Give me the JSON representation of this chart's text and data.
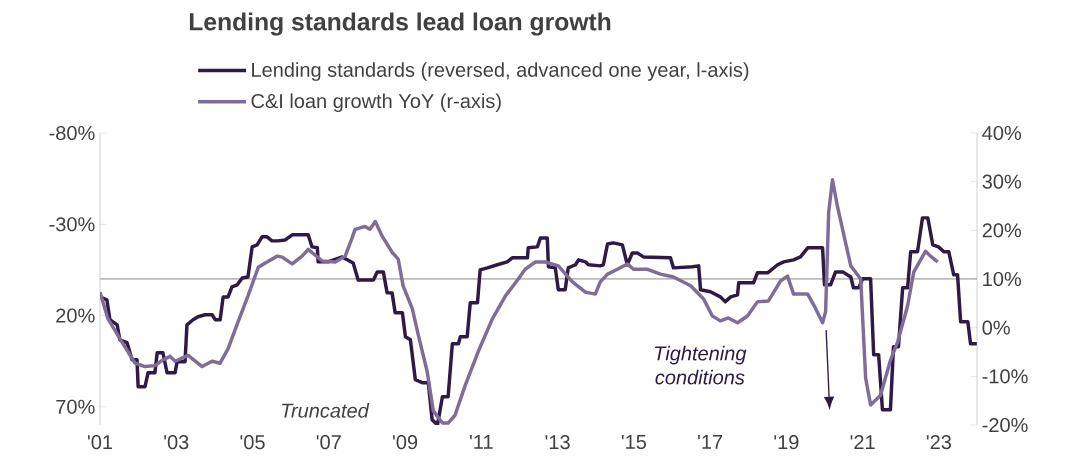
{
  "chart_data": {
    "type": "line",
    "title": "Lending standards lead loan growth",
    "legend": "top",
    "xlim": [
      2001,
      2024
    ],
    "xticks": [
      {
        "value": 2001,
        "label": "'01"
      },
      {
        "value": 2003,
        "label": "'03"
      },
      {
        "value": 2005,
        "label": "'05"
      },
      {
        "value": 2007,
        "label": "'07"
      },
      {
        "value": 2009,
        "label": "'09"
      },
      {
        "value": 2011,
        "label": "'11"
      },
      {
        "value": 2013,
        "label": "'13"
      },
      {
        "value": 2015,
        "label": "'15"
      },
      {
        "value": 2017,
        "label": "'17"
      },
      {
        "value": 2019,
        "label": "'19"
      },
      {
        "value": 2021,
        "label": "'21"
      },
      {
        "value": 2023,
        "label": "'23"
      }
    ],
    "ylim": [
      80,
      -80
    ],
    "yticks": [
      {
        "value": -80,
        "label": "-80%"
      },
      {
        "value": -30,
        "label": "-30%"
      },
      {
        "value": 20,
        "label": "20%"
      },
      {
        "value": 70,
        "label": "70%"
      }
    ],
    "y2lim": [
      -20,
      40
    ],
    "y2ticks": [
      {
        "value": -20,
        "label": "-20%"
      },
      {
        "value": -10,
        "label": "-10%"
      },
      {
        "value": 0,
        "label": "0%"
      },
      {
        "value": 10,
        "label": "10%"
      },
      {
        "value": 20,
        "label": "20%"
      },
      {
        "value": 30,
        "label": "30%"
      },
      {
        "value": 40,
        "label": "40%"
      }
    ],
    "ref_lines": [
      {
        "axis": "y",
        "value": 0,
        "color": "#a6a6a6"
      }
    ],
    "annotations": [
      "Truncated",
      "Tightening conditions"
    ],
    "series": [
      {
        "name": "Lending standards (reversed, advanced one year, l-axis)",
        "color": "#2e1a47",
        "axis": "y",
        "x": [
          2001.0,
          2001.18,
          2001.26,
          2001.45,
          2001.52,
          2001.71,
          2001.84,
          2001.97,
          2002.0,
          2002.18,
          2002.26,
          2002.44,
          2002.5,
          2002.65,
          2002.76,
          2002.97,
          2003.02,
          2003.23,
          2003.28,
          2003.44,
          2003.57,
          2003.76,
          2003.94,
          2004.02,
          2004.15,
          2004.23,
          2004.36,
          2004.46,
          2004.6,
          2004.73,
          2004.88,
          2004.99,
          2005.12,
          2005.25,
          2005.38,
          2005.51,
          2005.67,
          2005.86,
          2006.04,
          2006.46,
          2006.56,
          2006.7,
          2006.72,
          2006.98,
          2007.35,
          2007.64,
          2007.77,
          2008.17,
          2008.27,
          2008.43,
          2008.53,
          2008.66,
          2008.74,
          2008.93,
          2009.01,
          2009.14,
          2009.27,
          2009.45,
          2009.61,
          2009.71,
          2009.85,
          2009.98,
          2010.13,
          2010.24,
          2010.4,
          2010.45,
          2010.63,
          2010.71,
          2010.9,
          2010.97,
          2011.16,
          2011.42,
          2011.68,
          2011.81,
          2012.21,
          2012.23,
          2012.47,
          2012.55,
          2012.73,
          2012.76,
          2012.94,
          2013.02,
          2013.2,
          2013.28,
          2013.47,
          2013.55,
          2013.73,
          2013.81,
          2014.12,
          2014.2,
          2014.31,
          2014.46,
          2014.7,
          2014.83,
          2014.96,
          2015.09,
          2015.25,
          2015.96,
          2016.04,
          2016.54,
          2016.7,
          2016.75,
          2017.01,
          2017.27,
          2017.4,
          2017.54,
          2017.72,
          2017.75,
          2018.14,
          2018.24,
          2018.51,
          2018.77,
          2018.93,
          2019.19,
          2019.37,
          2019.56,
          2019.95,
          2020.0,
          2020.16,
          2020.29,
          2020.48,
          2020.69,
          2020.76,
          2020.9,
          2021.0,
          2021.21,
          2021.29,
          2021.42,
          2021.52,
          2021.73,
          2021.81,
          2021.94,
          2022.05,
          2022.18,
          2022.26,
          2022.44,
          2022.57,
          2022.71,
          2022.84,
          2022.99,
          2023.13,
          2023.26,
          2023.39,
          2023.49,
          2023.57,
          2023.76,
          2023.83,
          2024.0
        ],
        "values": [
          9.8,
          11.4,
          22.3,
          25.1,
          33.3,
          34.9,
          44.2,
          44.2,
          59.0,
          59.0,
          51.4,
          51.4,
          40.4,
          40.4,
          51.4,
          51.4,
          45.3,
          45.3,
          25.1,
          22.3,
          20.7,
          19.6,
          19.6,
          22.3,
          22.3,
          9.8,
          9.8,
          4.3,
          3.2,
          -0.6,
          -1.1,
          -17.6,
          -18.7,
          -23.1,
          -23.1,
          -20.9,
          -20.9,
          -21.4,
          -24.2,
          -24.2,
          -17.6,
          -17.1,
          -9.4,
          -9.4,
          -12.1,
          -8.8,
          0.5,
          0.5,
          -3.9,
          -3.9,
          7.6,
          7.6,
          18.5,
          18.5,
          31.6,
          33.3,
          55.2,
          56.8,
          56.8,
          77.1,
          80,
          64.5,
          64.5,
          35.5,
          35.5,
          31.6,
          31.6,
          13.0,
          13.0,
          -5.0,
          -6.1,
          -7.8,
          -9.4,
          -11.6,
          -11.6,
          -17.1,
          -17.6,
          -22.5,
          -22.5,
          -6.7,
          -6.1,
          5.9,
          5.9,
          -6.1,
          -7.8,
          -10.5,
          -9.4,
          -7.8,
          -7.2,
          -7.8,
          -19.2,
          -19.8,
          -18.7,
          -7.8,
          -14.3,
          -14.3,
          -12.1,
          -11.6,
          -6.1,
          -6.7,
          -7.2,
          5.9,
          7.0,
          9.8,
          12.5,
          9.8,
          8.7,
          2.1,
          2.1,
          -3.4,
          -3.4,
          -7.8,
          -9.4,
          -10.5,
          -12.1,
          -17.1,
          -17.1,
          3.2,
          3.2,
          -3.9,
          -3.9,
          -1.1,
          4.8,
          4.8,
          -0.1,
          -0.1,
          41.5,
          41.5,
          71.6,
          71.6,
          37.1,
          37.1,
          4.8,
          4.8,
          -14.9,
          -14.9,
          -33.5,
          -33.5,
          -18.7,
          -17.6,
          -14.9,
          -14.9,
          -2.3,
          -2.3,
          23.4,
          23.4,
          35.5,
          35.5
        ]
      },
      {
        "name": "C&I loan growth YoY (r-axis)",
        "color": "#7f6d99",
        "axis": "y2",
        "x": [
          2001.0,
          2001.21,
          2001.47,
          2001.73,
          2001.92,
          2002.18,
          2002.44,
          2002.63,
          2002.84,
          2002.97,
          2003.31,
          2003.68,
          2003.94,
          2004.15,
          2004.36,
          2004.62,
          2004.88,
          2005.15,
          2005.38,
          2005.65,
          2005.78,
          2006.04,
          2006.3,
          2006.46,
          2006.83,
          2007.17,
          2007.43,
          2007.6,
          2007.69,
          2007.95,
          2008.08,
          2008.22,
          2008.4,
          2008.66,
          2008.82,
          2008.95,
          2009.19,
          2009.35,
          2009.58,
          2009.74,
          2009.98,
          2010.13,
          2010.31,
          2010.58,
          2010.92,
          2011.29,
          2011.63,
          2011.97,
          2012.15,
          2012.42,
          2012.68,
          2013.02,
          2013.39,
          2013.73,
          2013.99,
          2014.12,
          2014.31,
          2014.57,
          2014.83,
          2014.99,
          2015.36,
          2015.7,
          2016.04,
          2016.49,
          2016.83,
          2017.06,
          2017.27,
          2017.48,
          2017.72,
          2017.98,
          2018.24,
          2018.53,
          2018.85,
          2019.03,
          2019.19,
          2019.56,
          2019.77,
          2019.95,
          2020.03,
          2020.11,
          2020.21,
          2020.34,
          2020.69,
          2020.95,
          2021.08,
          2021.21,
          2021.47,
          2021.73,
          2021.92,
          2022.18,
          2022.34,
          2022.65,
          2022.78,
          2022.97
        ],
        "values": [
          7.3,
          1.8,
          -1.6,
          -4.9,
          -7.3,
          -8.0,
          -7.8,
          -6.7,
          -5.9,
          -6.9,
          -5.7,
          -8.0,
          -6.9,
          -7.3,
          -4.3,
          1.2,
          6.5,
          12.4,
          13.5,
          14.7,
          14.5,
          13.1,
          14.7,
          16.1,
          13.7,
          13.5,
          14.7,
          18.2,
          20.2,
          20.8,
          20.2,
          21.8,
          18.8,
          15.5,
          14.1,
          8.6,
          3.9,
          -1.6,
          -9.0,
          -17.1,
          -19.6,
          -19.6,
          -18.0,
          -11.8,
          -4.9,
          1.8,
          6.5,
          10.0,
          12.0,
          13.5,
          13.5,
          12.7,
          9.4,
          7.3,
          6.9,
          9.4,
          11.0,
          12.0,
          13.1,
          12.0,
          12.0,
          11.0,
          10.4,
          8.6,
          5.9,
          2.4,
          1.4,
          2.0,
          1.0,
          2.4,
          5.3,
          5.5,
          9.6,
          10.6,
          6.9,
          6.9,
          3.9,
          1.0,
          3.3,
          23.7,
          30.4,
          24.9,
          12.7,
          10.0,
          -10.4,
          -15.9,
          -13.9,
          -6.7,
          -2.9,
          4.5,
          11.4,
          15.7,
          14.7,
          13.5
        ]
      }
    ]
  }
}
